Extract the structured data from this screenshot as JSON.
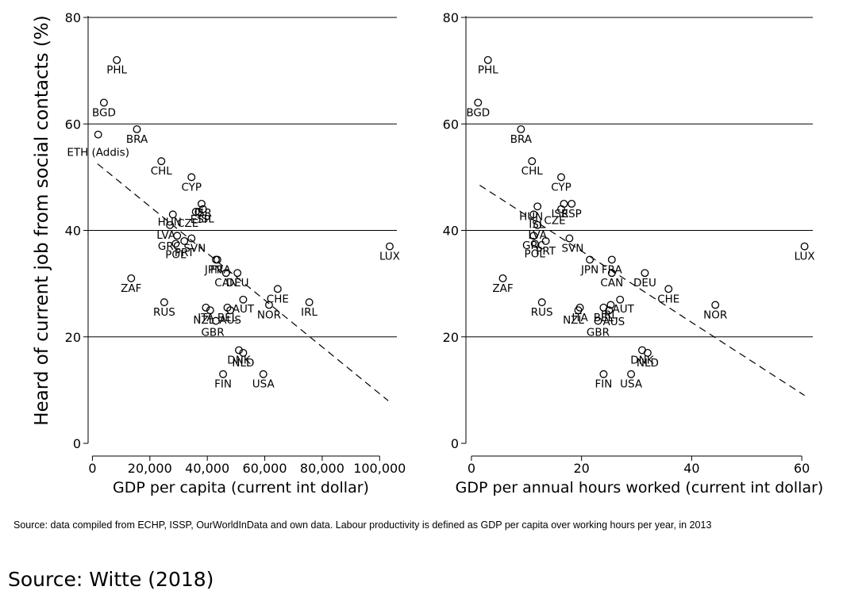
{
  "figure": {
    "ylabel": "Heard of current job from social contacts (%)",
    "source_note": "Source: data compiled from ECHP, ISSP, OurWorldInData and own data. Labour productivity is defined as GDP per capita over working hours per year, in 2013",
    "credit": "Source: Witte (2018)"
  },
  "chart_data": [
    {
      "type": "scatter",
      "xlabel": "GDP per capita (current int dollar)",
      "ylabel": "Heard of current job from social contacts (%)",
      "xlim": [
        -1500,
        106000
      ],
      "ylim": [
        0,
        80
      ],
      "xticks": [
        0,
        20000,
        40000,
        60000,
        80000,
        100000
      ],
      "xtick_labels": [
        "0",
        "20,000",
        "40,000",
        "60,000",
        "80,000",
        "100,000"
      ],
      "yticks": [
        0,
        20,
        40,
        60,
        80
      ],
      "grid": "horizontal",
      "fit_line": [
        [
          1800,
          52.5
        ],
        [
          103000,
          8.0
        ]
      ],
      "points": [
        {
          "label": "PHL",
          "x": 8500,
          "y": 72
        },
        {
          "label": "BGD",
          "x": 4000,
          "y": 64
        },
        {
          "label": "ETH (Addis)",
          "x": 2000,
          "y": 58
        },
        {
          "label": "BRA",
          "x": 15500,
          "y": 59
        },
        {
          "label": "CHL",
          "x": 24000,
          "y": 53
        },
        {
          "label": "CYP",
          "x": 34500,
          "y": 50
        },
        {
          "label": "ISR",
          "x": 38000,
          "y": 45
        },
        {
          "label": "ISL",
          "x": 38500,
          "y": 44
        },
        {
          "label": "CZE",
          "x": 36000,
          "y": 43.5
        },
        {
          "label": "HUN",
          "x": 28000,
          "y": 43
        },
        {
          "label": "ESP",
          "x": 37000,
          "y": 43.5
        },
        {
          "label": "LVA",
          "x": 27000,
          "y": 41
        },
        {
          "label": "GRC",
          "x": 29500,
          "y": 39
        },
        {
          "label": "SVN",
          "x": 34500,
          "y": 38.5
        },
        {
          "label": "PRT",
          "x": 32000,
          "y": 38
        },
        {
          "label": "POL",
          "x": 29000,
          "y": 37.5
        },
        {
          "label": "LUX",
          "x": 103500,
          "y": 37
        },
        {
          "label": "JPN",
          "x": 43000,
          "y": 34.5
        },
        {
          "label": "FRA",
          "x": 43500,
          "y": 34.5
        },
        {
          "label": "CAN",
          "x": 46500,
          "y": 32
        },
        {
          "label": "DEU",
          "x": 50500,
          "y": 32
        },
        {
          "label": "ZAF",
          "x": 13500,
          "y": 31
        },
        {
          "label": "CHE",
          "x": 64500,
          "y": 29
        },
        {
          "label": "AUT",
          "x": 52500,
          "y": 27
        },
        {
          "label": "RUS",
          "x": 25000,
          "y": 26.5
        },
        {
          "label": "IRL",
          "x": 75500,
          "y": 26.5
        },
        {
          "label": "NOR",
          "x": 61500,
          "y": 26
        },
        {
          "label": "BEL",
          "x": 47000,
          "y": 25.5
        },
        {
          "label": "AUS",
          "x": 48000,
          "y": 25
        },
        {
          "label": "ITA",
          "x": 39500,
          "y": 25.5
        },
        {
          "label": "NZL",
          "x": 41000,
          "y": 25
        },
        {
          "label": "GBR",
          "x": 43000,
          "y": 23
        },
        {
          "label": "DNK",
          "x": 51000,
          "y": 17.5
        },
        {
          "label": "NLD",
          "x": 52500,
          "y": 17
        },
        {
          "label": "FIN",
          "x": 45500,
          "y": 13
        },
        {
          "label": "USA",
          "x": 59500,
          "y": 13
        }
      ]
    },
    {
      "type": "scatter",
      "xlabel": "GDP per annual hours worked (current int dollar)",
      "ylabel": "",
      "xlim": [
        -1,
        62
      ],
      "ylim": [
        0,
        80
      ],
      "xticks": [
        0,
        20,
        40,
        60
      ],
      "xtick_labels": [
        "0",
        "20",
        "40",
        "60"
      ],
      "yticks": [
        0,
        20,
        40,
        60,
        80
      ],
      "grid": "horizontal",
      "fit_line": [
        [
          1.5,
          48.5
        ],
        [
          60.5,
          9.0
        ]
      ],
      "points": [
        {
          "label": "PHL",
          "x": 3,
          "y": 72
        },
        {
          "label": "BGD",
          "x": 1.2,
          "y": 64
        },
        {
          "label": "BRA",
          "x": 9,
          "y": 59
        },
        {
          "label": "CHL",
          "x": 11,
          "y": 53
        },
        {
          "label": "CYP",
          "x": 16.3,
          "y": 50
        },
        {
          "label": "ISR",
          "x": 16.8,
          "y": 45
        },
        {
          "label": "ESP",
          "x": 18.2,
          "y": 45
        },
        {
          "label": "CZE",
          "x": 16.3,
          "y": 44
        },
        {
          "label": "HUN",
          "x": 12,
          "y": 44.5
        },
        {
          "label": "ISL",
          "x": 11.3,
          "y": 43
        },
        {
          "label": "LVA",
          "x": 12,
          "y": 41
        },
        {
          "label": "GRC",
          "x": 11.3,
          "y": 39
        },
        {
          "label": "SVN",
          "x": 17.8,
          "y": 38.5
        },
        {
          "label": "PRT",
          "x": 13.5,
          "y": 38
        },
        {
          "label": "POL",
          "x": 11.5,
          "y": 37.5
        },
        {
          "label": "LUX",
          "x": 60.5,
          "y": 37
        },
        {
          "label": "JPN",
          "x": 21.5,
          "y": 34.5
        },
        {
          "label": "FRA",
          "x": 25.5,
          "y": 34.5
        },
        {
          "label": "CAN",
          "x": 25.5,
          "y": 32
        },
        {
          "label": "DEU",
          "x": 31.5,
          "y": 32
        },
        {
          "label": "ZAF",
          "x": 5.7,
          "y": 31
        },
        {
          "label": "CHE",
          "x": 35.8,
          "y": 29
        },
        {
          "label": "AUT",
          "x": 27,
          "y": 27
        },
        {
          "label": "RUS",
          "x": 12.8,
          "y": 26.5
        },
        {
          "label": "NOR",
          "x": 44.3,
          "y": 26
        },
        {
          "label": "BEL",
          "x": 24,
          "y": 25.5
        },
        {
          "label": "IRL",
          "x": 25.3,
          "y": 26
        },
        {
          "label": "AUS",
          "x": 25,
          "y": 25
        },
        {
          "label": "ITA",
          "x": 19.7,
          "y": 25.5
        },
        {
          "label": "NZL",
          "x": 19.4,
          "y": 25
        },
        {
          "label": "GBR",
          "x": 23,
          "y": 23
        },
        {
          "label": "DNK",
          "x": 31,
          "y": 17.5
        },
        {
          "label": "NLD",
          "x": 32,
          "y": 17
        },
        {
          "label": "FIN",
          "x": 24,
          "y": 13
        },
        {
          "label": "USA",
          "x": 29,
          "y": 13
        }
      ]
    }
  ]
}
